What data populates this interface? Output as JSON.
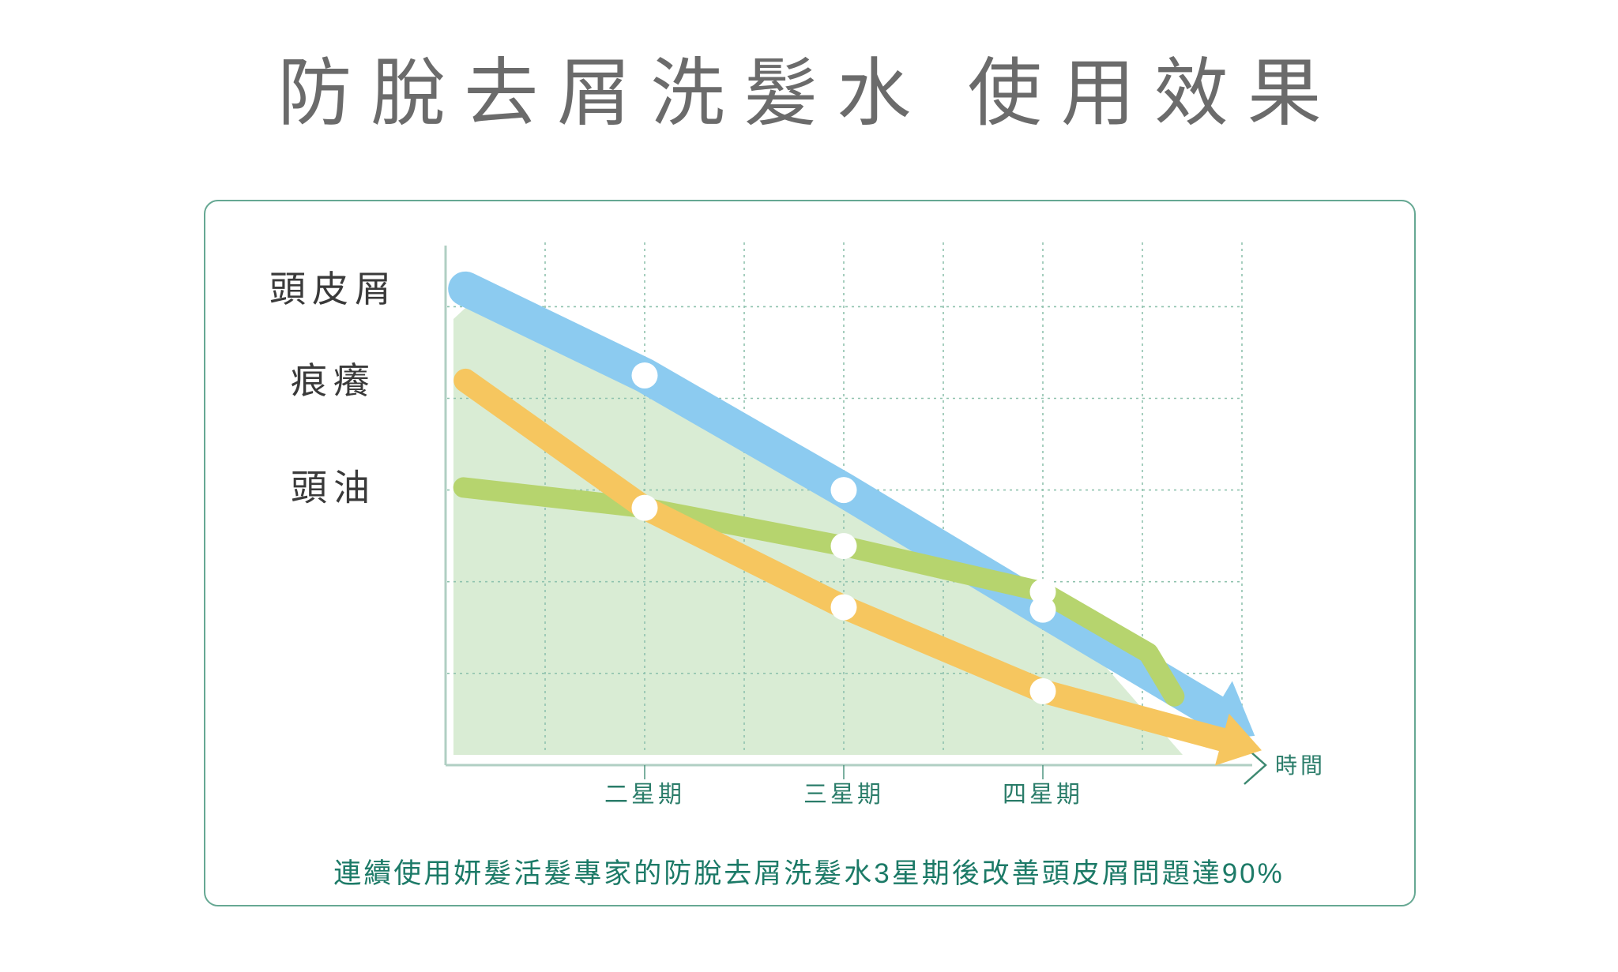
{
  "page_title": "防脫去屑洗髮水  使用效果",
  "caption": "連續使用妍髮活髮專家的防脫去屑洗髮水3星期後改善頭皮屑問題達90%",
  "colors": {
    "title_gray": "#6b6b6b",
    "panel_border": "#66a893",
    "axis": "#b0cfc3",
    "grid": "#8fc2ae",
    "tick_green": "#2a7c69",
    "caption_green": "#1c7a67",
    "label_dark": "#3a3a3a",
    "series_blue": "#8ccbf0",
    "series_orange": "#f6c65f",
    "series_green": "#b6d46e",
    "area_fill": "#d9ecd4",
    "marker_white": "#ffffff"
  },
  "chart_data": {
    "type": "line",
    "title": "防脫去屑洗髮水 使用效果",
    "xlabel": "時間",
    "ylabel": "",
    "x_ticks": [
      {
        "week": 2,
        "label": "二星期"
      },
      {
        "week": 3,
        "label": "三星期"
      },
      {
        "week": 4,
        "label": "四星期"
      }
    ],
    "x_range_weeks": [
      1,
      5
    ],
    "y_range": [
      0,
      100
    ],
    "grid": "dashed",
    "x_gridlines_weeks": [
      1.5,
      2,
      2.5,
      3,
      3.5,
      4,
      4.5,
      5
    ],
    "y_gridlines": [
      88,
      70,
      52,
      34,
      16
    ],
    "legend_position": "left-axis-labels",
    "series": [
      {
        "name": "頭皮屑",
        "color": "#8ccbf0",
        "stroke_width": 44,
        "arrow": true,
        "points": [
          [
            1.1,
            91.5
          ],
          [
            2,
            74.5
          ],
          [
            3,
            52
          ],
          [
            4,
            28.5
          ],
          [
            4.86,
            8.5
          ]
        ],
        "markers": [
          [
            2,
            74.5
          ],
          [
            3,
            52
          ],
          [
            4,
            28.5
          ]
        ]
      },
      {
        "name": "痕癢",
        "color": "#f6c65f",
        "stroke_width": 30,
        "arrow": true,
        "points": [
          [
            1.1,
            73.5
          ],
          [
            2,
            48.5
          ],
          [
            3,
            29
          ],
          [
            4,
            12.5
          ],
          [
            4.9,
            3
          ]
        ],
        "markers": [
          [
            2,
            48.5
          ],
          [
            3,
            29
          ],
          [
            4,
            12.5
          ]
        ]
      },
      {
        "name": "頭油",
        "color": "#b6d46e",
        "stroke_width": 26,
        "arrow": false,
        "points": [
          [
            1.09,
            52.5
          ],
          [
            2,
            48.5
          ],
          [
            3,
            41
          ],
          [
            4,
            32
          ],
          [
            4.53,
            20
          ],
          [
            4.66,
            11.5
          ]
        ],
        "markers": [
          [
            3,
            41
          ],
          [
            4,
            32
          ]
        ]
      }
    ],
    "area_fill": {
      "under_series": "頭皮屑",
      "color": "#d9ecd4"
    },
    "annotation": "連續使用妍髮活髮專家的防脫去屑洗髮水3星期後改善頭皮屑問題達90%"
  }
}
